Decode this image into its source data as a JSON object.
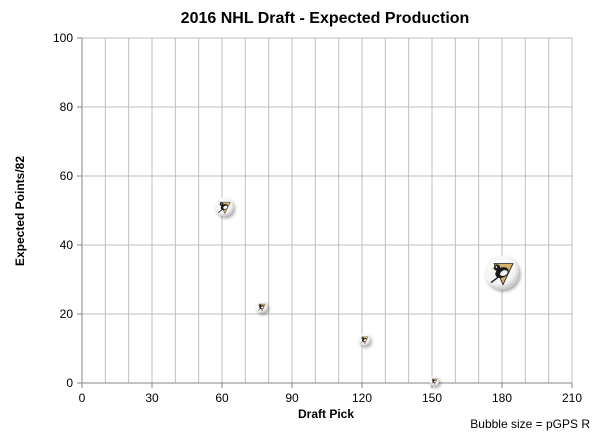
{
  "chart_data": {
    "type": "scatter",
    "title": "2016 NHL Draft - Expected Production",
    "xlabel": "Draft Pick",
    "ylabel": "Expected Points/82",
    "xlim": [
      0,
      210
    ],
    "ylim": [
      0,
      100
    ],
    "xticks": [
      0,
      30,
      60,
      90,
      120,
      150,
      180,
      210
    ],
    "yticks": [
      0,
      20,
      40,
      60,
      80,
      100
    ],
    "x_grid_step": 10,
    "grid": true,
    "legend": "none",
    "marker": "penguins-logo-bubble",
    "size_note": "Bubble size = pGPS R",
    "series": [
      {
        "points": [
          {
            "x": 61,
            "y": 51,
            "size": 0.3
          },
          {
            "x": 77,
            "y": 22,
            "size": 0.12
          },
          {
            "x": 121,
            "y": 12.5,
            "size": 0.12
          },
          {
            "x": 151,
            "y": 0.5,
            "size": 0.08
          },
          {
            "x": 180,
            "y": 32,
            "size": 1.0
          }
        ]
      }
    ]
  },
  "colors": {
    "grid": "#bfbfbf",
    "axis": "#868686",
    "text": "#000000",
    "logo_gold": "#d4b36a",
    "logo_black": "#1a1a1a"
  }
}
